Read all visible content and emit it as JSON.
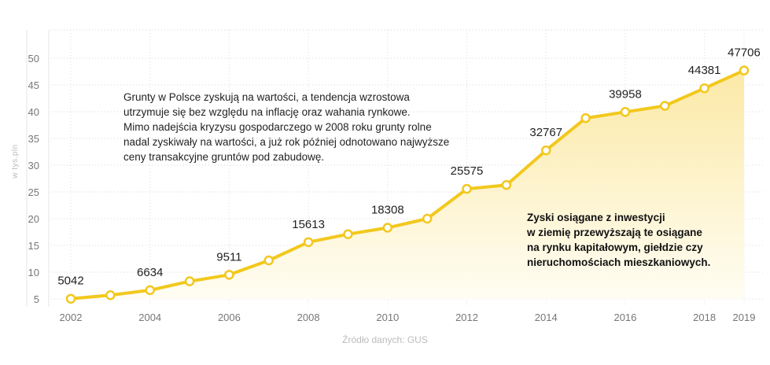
{
  "chart_data": {
    "type": "area",
    "x": [
      2002,
      2003,
      2004,
      2005,
      2006,
      2007,
      2008,
      2009,
      2010,
      2011,
      2012,
      2013,
      2014,
      2015,
      2016,
      2017,
      2018,
      2019
    ],
    "values": [
      5042,
      5700,
      6634,
      8300,
      9511,
      12200,
      15613,
      17100,
      18308,
      20000,
      25575,
      26300,
      32767,
      38800,
      39958,
      41100,
      44381,
      47706
    ],
    "labeled_years": [
      2002,
      2004,
      2006,
      2008,
      2010,
      2012,
      2014,
      2016,
      2018,
      2019
    ],
    "data_labels": [
      {
        "year": 2002,
        "text": "5042"
      },
      {
        "year": 2004,
        "text": "6634"
      },
      {
        "year": 2006,
        "text": "9511"
      },
      {
        "year": 2008,
        "text": "15613"
      },
      {
        "year": 2010,
        "text": "18308"
      },
      {
        "year": 2012,
        "text": "25575"
      },
      {
        "year": 2014,
        "text": "32767"
      },
      {
        "year": 2016,
        "text": "39958"
      },
      {
        "year": 2018,
        "text": "44381"
      },
      {
        "year": 2019,
        "text": "47706"
      }
    ],
    "yticks": [
      5,
      10,
      15,
      20,
      25,
      30,
      35,
      40,
      45,
      50
    ],
    "ylim": [
      5,
      50
    ],
    "ylabel": "w tys.pln",
    "xlabel": "",
    "title": "",
    "grid": true,
    "colors": {
      "line": "#f2c81d",
      "fill_top": "#fbe9a6",
      "fill_bottom": "#fffdf3",
      "marker_fill": "#ffffff"
    }
  },
  "notes": {
    "main": [
      "Grunty w Polsce zyskują na wartości, a tendencja wzrostowa",
      "utrzymuje się bez względu na inflację oraz wahania rynkowe.",
      "Mimo nadejścia kryzysu gospodarczego w 2008 roku grunty rolne",
      "nadal zyskiwały na wartości, a już rok później odnotowano najwyższe",
      "ceny transakcyjne gruntów pod zabudowę."
    ],
    "highlight": [
      "Zyski osiągane z inwestycji",
      "w ziemię przewyższają te osiągane",
      "na rynku kapitałowym, giełdzie czy",
      "nieruchomościach mieszkaniowych."
    ]
  },
  "source": "Źródło danych: GUS"
}
